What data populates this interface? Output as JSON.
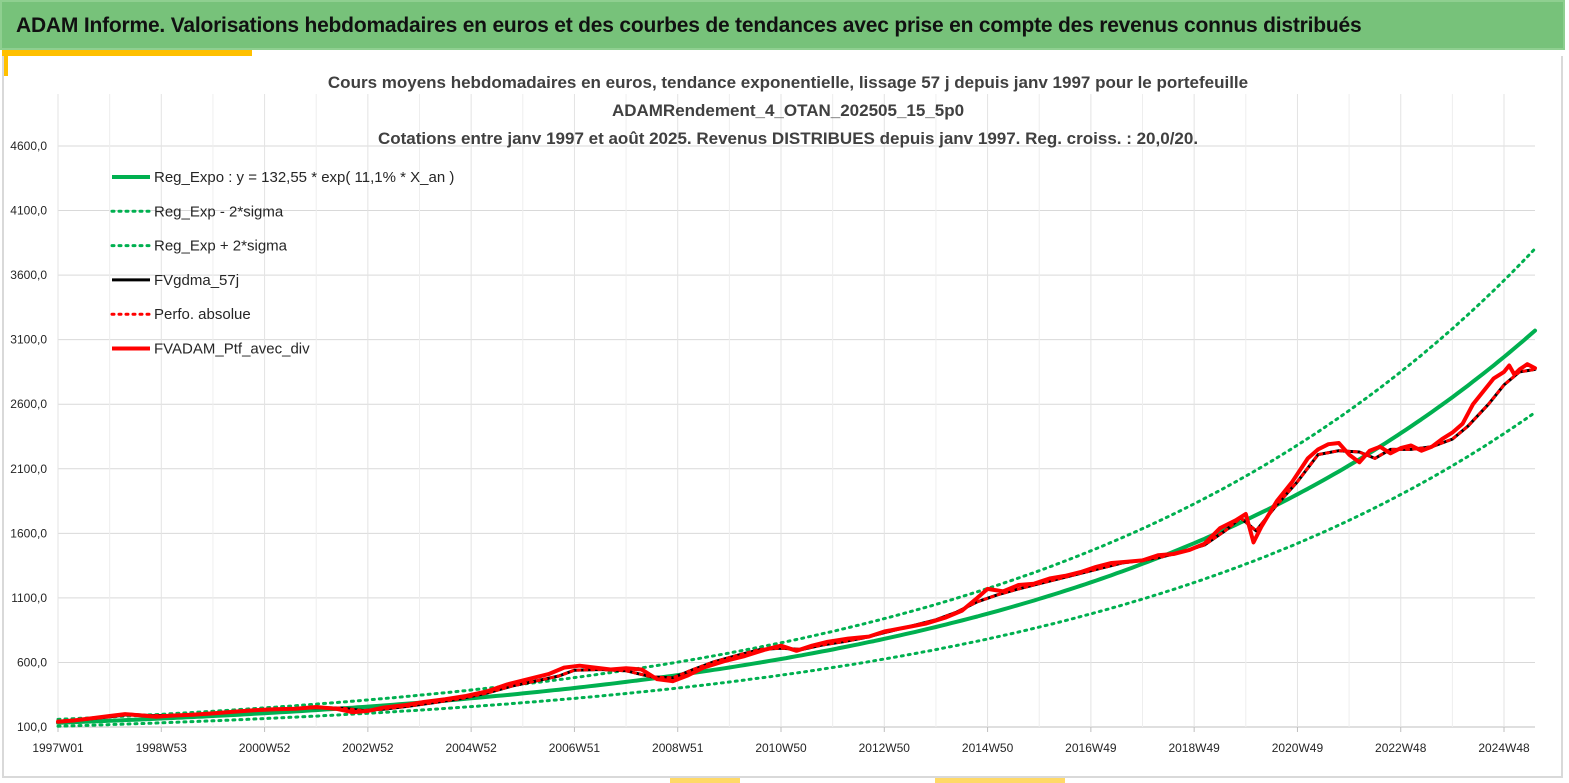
{
  "banner": {
    "title": "ADAM Informe. Valorisations hebdomadaires en euros et des courbes de tendances avec prise en compte des revenus connus distribués"
  },
  "colors": {
    "banner_bg": "#77c27a",
    "accent": "#ffc000",
    "trend_green": "#00b050",
    "black_series": "#000000",
    "red_series": "#ff0000"
  },
  "chart_data": {
    "type": "line",
    "title_lines": [
      "Cours moyens hebdomadaires  en euros, tendance exponentielle, lissage 57 j depuis janv 1997 pour le portefeuille",
      "ADAMRendement_4_OTAN_202505_15_5p0",
      "Cotations  entre janv 1997 et août 2025. Revenus DISTRIBUES depuis janv 1997. Reg. croiss. : 20,0/20."
    ],
    "xlabel": "",
    "ylabel": "",
    "x_tick_labels": [
      "1997W01",
      "1998W53",
      "2000W52",
      "2002W52",
      "2004W52",
      "2006W51",
      "2008W51",
      "2010W50",
      "2012W50",
      "2014W50",
      "2016W49",
      "2018W49",
      "2020W49",
      "2022W48",
      "2024W48"
    ],
    "x_tick_years": [
      1997.0,
      1999.0,
      2001.0,
      2003.0,
      2005.0,
      2007.0,
      2009.0,
      2011.0,
      2013.0,
      2015.0,
      2017.0,
      2019.0,
      2021.0,
      2023.0,
      2025.0
    ],
    "x_range": [
      1997.0,
      2025.6
    ],
    "y_tick_labels": [
      "100,0",
      "600,0",
      "1100,0",
      "1600,0",
      "2100,0",
      "2600,0",
      "3100,0",
      "3600,0",
      "4100,0",
      "4600,0"
    ],
    "y_ticks": [
      100,
      600,
      1100,
      1600,
      2100,
      2600,
      3100,
      3600,
      4100,
      4600
    ],
    "ylim": [
      100,
      4850
    ],
    "grid": true,
    "legend_position": "top-left",
    "regression": {
      "a": 132.55,
      "rate": 0.111,
      "sigma_multiplier": 0.2
    },
    "series": [
      {
        "name": "Reg_Expo : y = 132,55 * exp( 11,1% *  X_an )",
        "kind": "regression",
        "style": "solid",
        "color": "#00b050",
        "width": 4
      },
      {
        "name": "Reg_Exp - 2*sigma",
        "kind": "regression_low",
        "style": "dotted",
        "color": "#00b050",
        "width": 3
      },
      {
        "name": "Reg_Exp + 2*sigma",
        "kind": "regression_high",
        "style": "dotted",
        "color": "#00b050",
        "width": 3
      },
      {
        "name": "FVgdma_57j",
        "kind": "data",
        "style": "solid",
        "color": "#000000",
        "width": 3,
        "x": [
          1997.0,
          1997.5,
          1998.0,
          1998.4,
          1998.8,
          1999.2,
          1999.6,
          2000.0,
          2000.5,
          2001.0,
          2001.5,
          2002.0,
          2002.5,
          2002.9,
          2003.3,
          2003.8,
          2004.3,
          2004.8,
          2005.3,
          2005.8,
          2006.3,
          2006.7,
          2007.0,
          2007.5,
          2008.0,
          2008.5,
          2008.9,
          2009.3,
          2009.7,
          2010.2,
          2010.6,
          2011.0,
          2011.4,
          2011.8,
          2012.2,
          2012.6,
          2013.0,
          2013.5,
          2014.0,
          2014.4,
          2014.8,
          2015.2,
          2015.6,
          2016.0,
          2016.4,
          2016.8,
          2017.2,
          2017.6,
          2018.0,
          2018.4,
          2018.8,
          2019.2,
          2019.6,
          2019.9,
          2020.2,
          2020.6,
          2021.0,
          2021.4,
          2021.8,
          2022.2,
          2022.5,
          2022.8,
          2023.2,
          2023.6,
          2024.0,
          2024.3,
          2024.7,
          2025.0,
          2025.3,
          2025.6
        ],
        "y": [
          145,
          158,
          178,
          198,
          188,
          190,
          196,
          208,
          222,
          235,
          242,
          250,
          246,
          228,
          238,
          262,
          290,
          320,
          362,
          418,
          460,
          495,
          540,
          545,
          535,
          488,
          480,
          545,
          605,
          660,
          700,
          710,
          700,
          735,
          760,
          790,
          830,
          880,
          930,
          990,
          1070,
          1125,
          1170,
          1210,
          1250,
          1290,
          1330,
          1370,
          1390,
          1420,
          1460,
          1510,
          1620,
          1720,
          1620,
          1820,
          2000,
          2210,
          2240,
          2230,
          2180,
          2250,
          2250,
          2270,
          2330,
          2430,
          2600,
          2750,
          2850,
          2870
        ]
      },
      {
        "name": "Perfo. absolue",
        "kind": "data",
        "style": "dotted",
        "color": "#ff0000",
        "width": 3,
        "x": [
          1997.0,
          1997.5,
          1998.0,
          1998.4,
          1998.8,
          1999.2,
          1999.6,
          2000.0,
          2000.5,
          2001.0,
          2001.5,
          2002.0,
          2002.5,
          2002.9,
          2003.3,
          2003.8,
          2004.3,
          2004.8,
          2005.3,
          2005.8,
          2006.3,
          2006.7,
          2007.0,
          2007.5,
          2008.0,
          2008.5,
          2008.9,
          2009.3,
          2009.7,
          2010.2,
          2010.6,
          2011.0,
          2011.4,
          2011.8,
          2012.2,
          2012.6,
          2013.0,
          2013.5,
          2014.0,
          2014.4,
          2014.8,
          2015.2,
          2015.6,
          2016.0,
          2016.4,
          2016.8,
          2017.2,
          2017.6,
          2018.0,
          2018.4,
          2018.8,
          2019.2,
          2019.6,
          2019.9,
          2020.2,
          2020.6,
          2021.0,
          2021.4,
          2021.8,
          2022.2,
          2022.5,
          2022.8,
          2023.2,
          2023.6,
          2024.0,
          2024.3,
          2024.7,
          2025.0,
          2025.3,
          2025.6
        ],
        "y": [
          145,
          158,
          178,
          198,
          188,
          190,
          196,
          208,
          222,
          235,
          242,
          250,
          246,
          228,
          238,
          262,
          290,
          320,
          362,
          418,
          460,
          495,
          540,
          545,
          535,
          488,
          480,
          545,
          605,
          660,
          700,
          710,
          700,
          735,
          760,
          790,
          830,
          880,
          930,
          990,
          1070,
          1125,
          1170,
          1210,
          1250,
          1290,
          1330,
          1370,
          1390,
          1420,
          1460,
          1510,
          1620,
          1720,
          1620,
          1820,
          2000,
          2210,
          2240,
          2230,
          2180,
          2250,
          2250,
          2270,
          2330,
          2430,
          2600,
          2750,
          2850,
          2870
        ]
      },
      {
        "name": "FVADAM_Ptf_avec_div",
        "kind": "data",
        "style": "solid",
        "color": "#ff0000",
        "width": 4,
        "x": [
          1997.0,
          1997.3,
          1997.6,
          1998.0,
          1998.3,
          1998.6,
          1998.9,
          1999.2,
          1999.6,
          2000.0,
          2000.4,
          2000.8,
          2001.2,
          2001.6,
          2002.0,
          2002.4,
          2002.7,
          2003.0,
          2003.3,
          2003.7,
          2004.1,
          2004.5,
          2004.9,
          2005.3,
          2005.7,
          2006.1,
          2006.5,
          2006.8,
          2007.1,
          2007.4,
          2007.7,
          2008.0,
          2008.3,
          2008.6,
          2008.9,
          2009.2,
          2009.5,
          2009.9,
          2010.3,
          2010.7,
          2011.0,
          2011.3,
          2011.6,
          2011.9,
          2012.3,
          2012.7,
          2013.0,
          2013.4,
          2013.8,
          2014.2,
          2014.5,
          2014.8,
          2015.0,
          2015.3,
          2015.6,
          2015.9,
          2016.2,
          2016.5,
          2016.8,
          2017.1,
          2017.4,
          2017.7,
          2018.0,
          2018.3,
          2018.6,
          2018.9,
          2019.2,
          2019.5,
          2019.8,
          2020.0,
          2020.15,
          2020.3,
          2020.6,
          2020.9,
          2021.2,
          2021.4,
          2021.6,
          2021.8,
          2022.0,
          2022.2,
          2022.4,
          2022.6,
          2022.8,
          2023.0,
          2023.2,
          2023.4,
          2023.6,
          2023.8,
          2024.0,
          2024.2,
          2024.4,
          2024.6,
          2024.8,
          2025.0,
          2025.1,
          2025.2,
          2025.3,
          2025.45,
          2025.6
        ],
        "y": [
          140,
          150,
          165,
          185,
          200,
          190,
          180,
          188,
          195,
          205,
          218,
          230,
          238,
          242,
          255,
          240,
          215,
          225,
          250,
          268,
          295,
          315,
          340,
          375,
          430,
          470,
          510,
          560,
          575,
          560,
          545,
          555,
          545,
          470,
          455,
          500,
          560,
          610,
          650,
          700,
          730,
          690,
          730,
          760,
          785,
          800,
          840,
          870,
          900,
          950,
          1000,
          1100,
          1170,
          1150,
          1200,
          1210,
          1250,
          1270,
          1300,
          1340,
          1370,
          1380,
          1390,
          1430,
          1440,
          1470,
          1520,
          1640,
          1700,
          1750,
          1530,
          1650,
          1850,
          2000,
          2180,
          2250,
          2290,
          2300,
          2210,
          2150,
          2240,
          2270,
          2220,
          2260,
          2280,
          2240,
          2270,
          2330,
          2380,
          2450,
          2600,
          2700,
          2800,
          2850,
          2900,
          2830,
          2870,
          2910,
          2880
        ]
      }
    ]
  }
}
